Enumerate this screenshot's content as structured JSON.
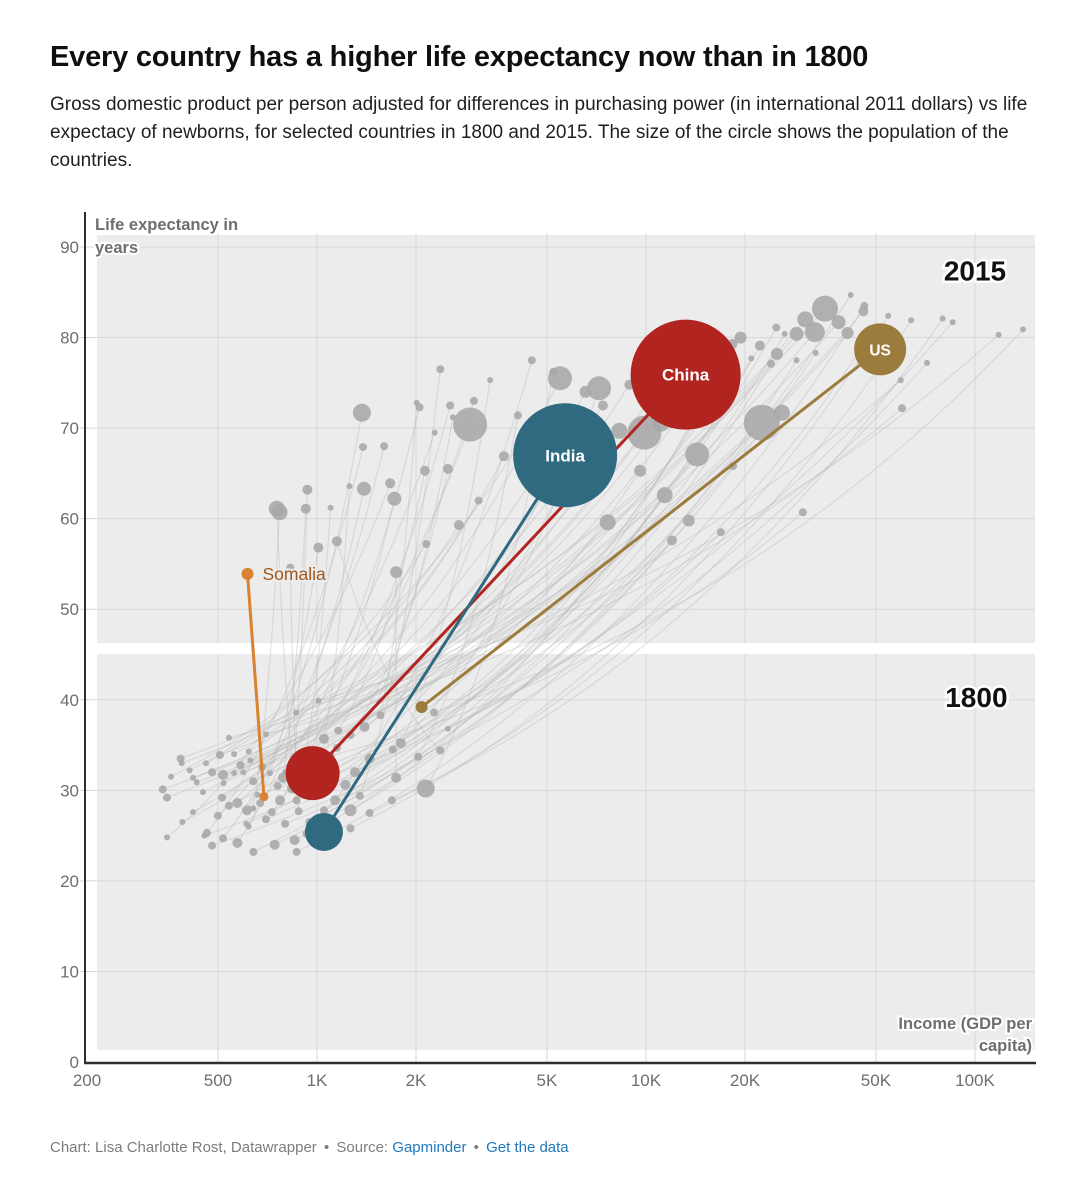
{
  "header": {
    "title": "Every country has a higher life expectancy now than in 1800",
    "description": "Gross domestic product per person adjusted for differences in purchasing power (in international 2011 dollars) vs life expectacy of newborns, for selected countries in 1800 and 2015. The size of the circle shows the population of the countries."
  },
  "footer": {
    "credit": "Chart: Lisa Charlotte Rost, Datawrapper",
    "sep": "•",
    "source_label": "Source:",
    "source_link": "Gapminder",
    "get_data_link": "Get the data"
  },
  "chart_data": {
    "type": "scatter",
    "title": "Every country has a higher life expectancy now than in 1800",
    "x_axis": {
      "label_lines": [
        "Income (GDP per",
        "capita)"
      ],
      "scale": "log",
      "range": [
        200,
        150000
      ],
      "ticks": [
        {
          "v": 200,
          "label": "200"
        },
        {
          "v": 500,
          "label": "500"
        },
        {
          "v": 1000,
          "label": "1K"
        },
        {
          "v": 2000,
          "label": "2K"
        },
        {
          "v": 5000,
          "label": "5K"
        },
        {
          "v": 10000,
          "label": "10K"
        },
        {
          "v": 20000,
          "label": "20K"
        },
        {
          "v": 50000,
          "label": "50K"
        },
        {
          "v": 100000,
          "label": "100K"
        }
      ]
    },
    "y_axis": {
      "label_lines": [
        "Life expectancy in",
        "years"
      ],
      "scale": "linear",
      "range": [
        0,
        92
      ],
      "ticks": [
        0,
        10,
        20,
        30,
        40,
        50,
        60,
        70,
        80,
        90
      ]
    },
    "era_labels": [
      {
        "text": "2015",
        "gdp": 100000,
        "life": 87.3
      },
      {
        "text": "1800",
        "gdp": 101000,
        "life": 40.2
      }
    ],
    "band_divider_life": 45.6,
    "colors": {
      "plot_bg": "#ececec",
      "gridline": "#d8d8d8",
      "axis": "#2e2e2e",
      "tick_text": "#6e6e6e",
      "background_bubble": "#a7a7a7",
      "background_trail": "#b9b9b9",
      "era_label": "#111111",
      "china": "#b22420",
      "india": "#2f6a80",
      "us": "#9c7c3c",
      "somalia": "#d9822f",
      "somalia_label": "#a0571b",
      "link": "#2079bd"
    },
    "highlighted": [
      {
        "name": "China",
        "color": "#b22420",
        "label_color": "#ffffff",
        "label_on": "2015",
        "p1800": {
          "gdp": 970,
          "life": 31.9,
          "r": 27
        },
        "p2015": {
          "gdp": 13200,
          "life": 75.9,
          "r": 55
        }
      },
      {
        "name": "India",
        "color": "#2f6a80",
        "label_color": "#ffffff",
        "label_on": "2015",
        "p1800": {
          "gdp": 1050,
          "life": 25.4,
          "r": 19
        },
        "p2015": {
          "gdp": 5680,
          "life": 67.0,
          "r": 52
        }
      },
      {
        "name": "US",
        "color": "#9c7c3c",
        "label_color": "#ffffff",
        "label_on": "2015",
        "p1800": {
          "gdp": 2080,
          "life": 39.2,
          "r": 6
        },
        "p2015": {
          "gdp": 51500,
          "life": 78.7,
          "r": 26
        }
      },
      {
        "name": "Somalia",
        "color": "#d9822f",
        "label_color": "#a0571b",
        "label_on": "beside-2015",
        "p1800": {
          "gdp": 690,
          "life": 29.3,
          "r": 4.5
        },
        "p2015": {
          "gdp": 615,
          "life": 53.9,
          "r": 6
        }
      }
    ],
    "background_pairs_format": [
      "gdp_1800",
      "life_1800",
      "r_1800",
      "gdp_2015",
      "life_2015",
      "r_2015"
    ],
    "background_pairs": [
      [
        385,
        33.5,
        4,
        35000,
        83.2,
        13
      ],
      [
        388,
        33.0,
        3,
        30500,
        82.0,
        8
      ],
      [
        340,
        30.1,
        4,
        38500,
        81.7,
        7
      ],
      [
        350,
        29.2,
        4,
        32600,
        80.6,
        10
      ],
      [
        420,
        31.4,
        3,
        28700,
        80.4,
        7
      ],
      [
        431,
        30.9,
        3,
        41000,
        80.5,
        6
      ],
      [
        480,
        32.0,
        4,
        45800,
        82.9,
        5
      ],
      [
        507,
        33.9,
        4,
        25000,
        78.2,
        6
      ],
      [
        518,
        31.7,
        5,
        22500,
        70.6,
        18
      ],
      [
        585,
        32.8,
        4,
        9900,
        69.5,
        17
      ],
      [
        597,
        32.0,
        3,
        14300,
        67.1,
        12
      ],
      [
        627,
        33.3,
        3,
        11100,
        70.6,
        9
      ],
      [
        682,
        32.6,
        4,
        7650,
        59.6,
        8
      ],
      [
        515,
        29.2,
        4,
        5480,
        75.5,
        12
      ],
      [
        573,
        28.6,
        5,
        2920,
        70.4,
        17
      ],
      [
        613,
        27.8,
        5,
        1370,
        71.7,
        9
      ],
      [
        672,
        28.6,
        4,
        2050,
        72.3,
        4
      ],
      [
        729,
        27.6,
        4,
        2540,
        72.5,
        4
      ],
      [
        500,
        27.2,
        4,
        2280,
        69.5,
        3
      ],
      [
        463,
        25.3,
        4,
        1380,
        67.9,
        4
      ],
      [
        518,
        24.7,
        4,
        1600,
        68.0,
        4
      ],
      [
        573,
        24.2,
        5,
        1390,
        63.3,
        7
      ],
      [
        350,
        24.8,
        3,
        1670,
        63.9,
        5
      ],
      [
        772,
        28.9,
        5,
        1720,
        62.2,
        7
      ],
      [
        840,
        30.2,
        5,
        935,
        63.2,
        5
      ],
      [
        867,
        28.9,
        4,
        755,
        61.1,
        8
      ],
      [
        788,
        31.4,
        5,
        925,
        61.1,
        5
      ],
      [
        901,
        32.0,
        4,
        1100,
        61.2,
        3
      ],
      [
        1050,
        35.7,
        5,
        1255,
        63.6,
        3
      ],
      [
        1160,
        36.6,
        4,
        2130,
        65.3,
        5
      ],
      [
        1265,
        36.1,
        4,
        2500,
        65.5,
        5
      ],
      [
        1395,
        37.0,
        5,
        2590,
        71.2,
        3
      ],
      [
        1560,
        38.3,
        4,
        2010,
        72.8,
        3
      ],
      [
        1800,
        35.2,
        5,
        3360,
        75.3,
        3
      ],
      [
        2030,
        33.7,
        4,
        4080,
        71.4,
        4
      ],
      [
        2140,
        30.2,
        9,
        5230,
        76.2,
        4
      ],
      [
        2370,
        34.4,
        4,
        1150,
        57.5,
        5
      ],
      [
        1740,
        31.4,
        5,
        1740,
        54.1,
        6
      ],
      [
        1445,
        33.5,
        5,
        24900,
        81.1,
        4
      ],
      [
        1305,
        32.0,
        5,
        26400,
        80.4,
        3
      ],
      [
        1220,
        30.6,
        5,
        22200,
        79.1,
        5
      ],
      [
        1135,
        28.9,
        5,
        19400,
        80.0,
        6
      ],
      [
        1265,
        27.8,
        6,
        18300,
        79.3,
        5
      ],
      [
        1050,
        27.8,
        4,
        20900,
        77.7,
        3
      ],
      [
        948,
        26.5,
        4,
        24000,
        77.1,
        4
      ],
      [
        855,
        24.5,
        5,
        28700,
        77.5,
        3
      ],
      [
        744,
        24.0,
        5,
        32800,
        78.3,
        3
      ],
      [
        641,
        23.2,
        4,
        41900,
        84.7,
        3
      ],
      [
        867,
        23.2,
        4,
        46100,
        83.5,
        4
      ],
      [
        1265,
        25.8,
        4,
        54500,
        82.4,
        3
      ],
      [
        1445,
        27.5,
        4,
        64000,
        81.9,
        3
      ],
      [
        1690,
        28.9,
        4,
        79800,
        82.1,
        3
      ],
      [
        455,
        25.0,
        3,
        85600,
        81.7,
        3
      ],
      [
        480,
        23.9,
        4,
        71500,
        77.2,
        3
      ],
      [
        540,
        35.8,
        3,
        59500,
        75.3,
        3
      ],
      [
        700,
        36.2,
        3,
        60000,
        72.2,
        4
      ],
      [
        865,
        38.6,
        3,
        25900,
        71.7,
        8
      ],
      [
        1010,
        39.9,
        3,
        118000,
        80.3,
        3
      ],
      [
        2270,
        38.6,
        4,
        140000,
        80.9,
        3
      ],
      [
        1100,
        33.8,
        4,
        30000,
        60.7,
        4
      ],
      [
        960,
        31.0,
        4,
        16900,
        58.5,
        4
      ],
      [
        760,
        30.5,
        4,
        18400,
        65.8,
        4
      ],
      [
        660,
        29.5,
        3,
        12000,
        57.6,
        5
      ],
      [
        540,
        28.3,
        4,
        8300,
        69.7,
        8
      ],
      [
        610,
        26.3,
        3,
        9600,
        65.3,
        6
      ],
      [
        700,
        26.8,
        4,
        11400,
        62.6,
        8
      ],
      [
        800,
        26.3,
        4,
        13500,
        59.8,
        6
      ],
      [
        930,
        25.2,
        4,
        4500,
        77.5,
        4
      ],
      [
        620,
        26.0,
        3,
        1010,
        56.8,
        5
      ],
      [
        640,
        28.0,
        3,
        770,
        60.7,
        8
      ],
      [
        420,
        27.6,
        3,
        6550,
        74.0,
        6
      ],
      [
        390,
        26.5,
        3,
        7400,
        72.5,
        5
      ],
      [
        450,
        29.8,
        3,
        8900,
        74.8,
        5
      ],
      [
        520,
        30.8,
        3,
        10400,
        73.5,
        6
      ],
      [
        560,
        31.9,
        3,
        12500,
        74.9,
        7
      ],
      [
        640,
        31.0,
        4,
        15400,
        75.8,
        6
      ],
      [
        720,
        31.9,
        3,
        17200,
        74.2,
        5
      ],
      [
        980,
        29.6,
        4,
        14800,
        71.9,
        5
      ],
      [
        1080,
        31.6,
        4,
        6100,
        66.5,
        5
      ],
      [
        1150,
        34.7,
        4,
        5000,
        63.8,
        5
      ],
      [
        620,
        34.3,
        3,
        3700,
        66.9,
        5
      ],
      [
        560,
        34.0,
        3,
        3100,
        62.0,
        4
      ],
      [
        460,
        33.0,
        3,
        2700,
        59.3,
        5
      ],
      [
        410,
        32.2,
        3,
        2150,
        57.2,
        4
      ],
      [
        360,
        31.5,
        3,
        4400,
        69.9,
        4
      ],
      [
        2500,
        36.8,
        3,
        49000,
        80.8,
        4
      ],
      [
        1350,
        29.4,
        4,
        2370,
        76.5,
        4
      ],
      [
        880,
        27.7,
        4,
        830,
        54.6,
        4
      ],
      [
        1700,
        34.5,
        4,
        7200,
        74.4,
        12
      ],
      [
        800,
        32.0,
        3,
        3000,
        73.0,
        4
      ]
    ]
  }
}
